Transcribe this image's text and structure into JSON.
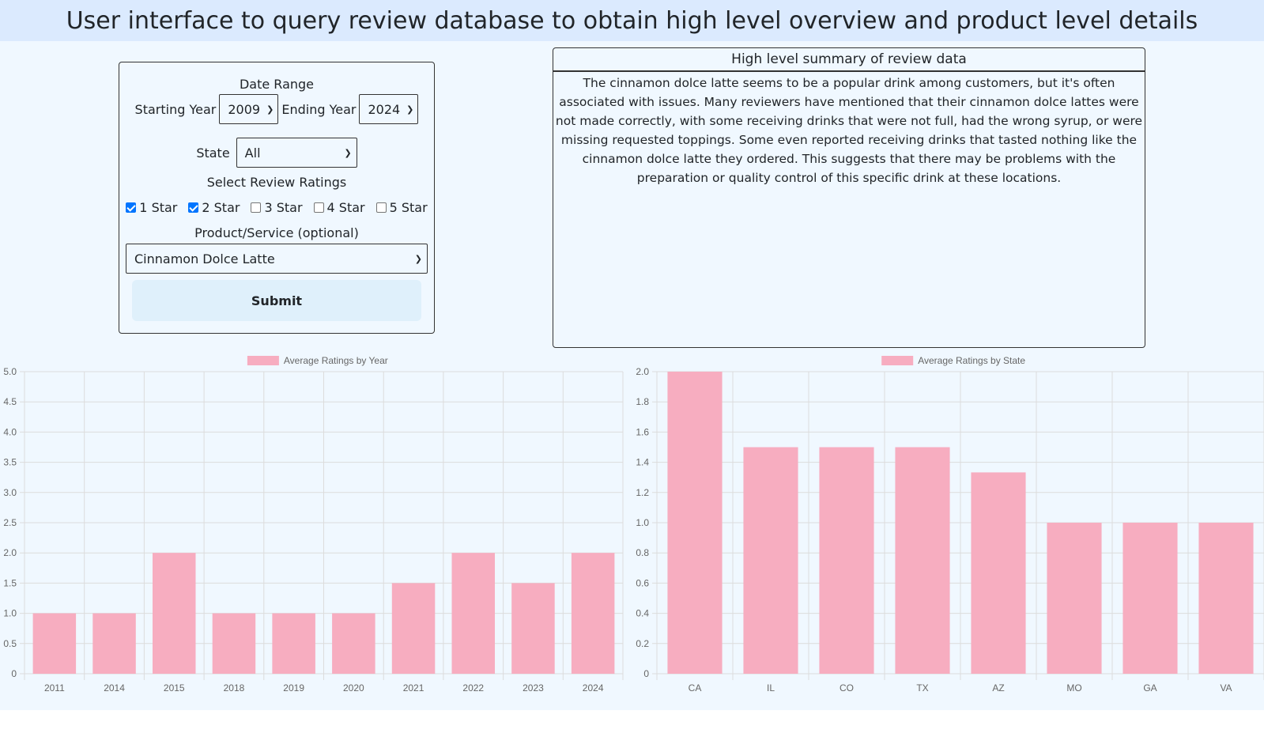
{
  "header": {
    "title": "User interface to query review database to obtain high level overview and product level details"
  },
  "form": {
    "date_range_label": "Date Range",
    "starting_year_label": "Starting Year",
    "starting_year_value": "2009",
    "ending_year_label": "Ending Year",
    "ending_year_value": "2024",
    "state_label": "State",
    "state_value": "All",
    "ratings_label": "Select Review Ratings",
    "ratings": [
      {
        "label": "1 Star",
        "checked": true
      },
      {
        "label": "2 Star",
        "checked": true
      },
      {
        "label": "3 Star",
        "checked": false
      },
      {
        "label": "4 Star",
        "checked": false
      },
      {
        "label": "5 Star",
        "checked": false
      }
    ],
    "product_label": "Product/Service (optional)",
    "product_value": "Cinnamon Dolce Latte",
    "submit_label": "Submit"
  },
  "summary": {
    "title": "High level summary of review data",
    "text": "The cinnamon dolce latte seems to be a popular drink among customers, but it's often associated with issues. Many reviewers have mentioned that their cinnamon dolce lattes were not made correctly, with some receiving drinks that were not full, had the wrong syrup, or were missing requested toppings. Some even reported receiving drinks that tasted nothing like the cinnamon dolce latte they ordered. This suggests that there may be problems with the preparation or quality control of this specific drink at these locations."
  },
  "colors": {
    "bar_fill": "#f7adc0",
    "grid": "#dcdcdc",
    "tick_text": "#666666"
  },
  "chart_data": [
    {
      "type": "bar",
      "title": "",
      "xlabel": "",
      "ylabel": "",
      "legend": "Average Ratings by Year",
      "legend_position": "top",
      "grid": true,
      "categories": [
        "2011",
        "2014",
        "2015",
        "2018",
        "2019",
        "2020",
        "2021",
        "2022",
        "2023",
        "2024"
      ],
      "series": [
        {
          "name": "Average Ratings by Year",
          "values": [
            1,
            1,
            2,
            1,
            1,
            1,
            1.5,
            2,
            1.5,
            2
          ]
        }
      ],
      "ylim": [
        0,
        5
      ],
      "yticks": [
        "0",
        "0.5",
        "1.0",
        "1.5",
        "2.0",
        "2.5",
        "3.0",
        "3.5",
        "4.0",
        "4.5",
        "5.0"
      ]
    },
    {
      "type": "bar",
      "title": "",
      "xlabel": "",
      "ylabel": "",
      "legend": "Average Ratings by State",
      "legend_position": "top",
      "grid": true,
      "categories": [
        "CA",
        "IL",
        "CO",
        "TX",
        "AZ",
        "MO",
        "GA",
        "VA"
      ],
      "series": [
        {
          "name": "Average Ratings by State",
          "values": [
            2,
            1.5,
            1.5,
            1.5,
            1.333,
            1,
            1,
            1
          ]
        }
      ],
      "ylim": [
        0,
        2
      ],
      "yticks": [
        "0",
        "0.2",
        "0.4",
        "0.6",
        "0.8",
        "1.0",
        "1.2",
        "1.4",
        "1.6",
        "1.8",
        "2.0"
      ]
    }
  ]
}
